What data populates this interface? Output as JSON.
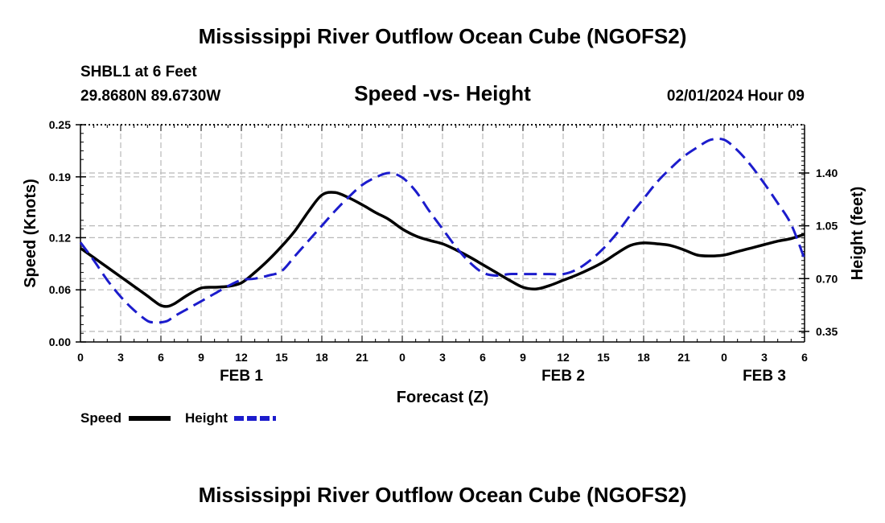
{
  "page": {
    "title": "Mississippi River Outflow Ocean Cube (NGOFS2)",
    "station": "SHBL1 at 6 Feet",
    "coords": "29.8680N  89.6730W",
    "chart_heading": "Speed -vs- Height",
    "datetime": "02/01/2024 Hour 09",
    "footer_title": "Mississippi River Outflow Ocean Cube (NGOFS2)"
  },
  "colors": {
    "speed": "#000000",
    "height": "#1c1ccc",
    "grid": "#b8b8b8"
  },
  "chart_data": {
    "type": "line",
    "title": "Speed -vs- Height",
    "xlabel": "Forecast (Z)",
    "ylabel": "Speed (Knots)",
    "y2label": "Height (feet)",
    "xlim": [
      0,
      54
    ],
    "ylim": [
      0,
      0.25
    ],
    "y2lim": [
      0.28,
      1.72
    ],
    "x_tick_values": [
      0,
      3,
      6,
      9,
      12,
      15,
      18,
      21,
      24,
      27,
      30,
      33,
      36,
      39,
      42,
      45,
      48,
      51,
      54
    ],
    "x_tick_labels": [
      "0",
      "3",
      "6",
      "9",
      "12",
      "15",
      "18",
      "21",
      "0",
      "3",
      "6",
      "9",
      "12",
      "15",
      "18",
      "21",
      "0",
      "3",
      "6"
    ],
    "y_ticks": [
      0.0,
      0.06,
      0.12,
      0.19,
      0.25
    ],
    "y_tick_labels": [
      "0.00",
      "0.06",
      "0.12",
      "0.19",
      "0.25"
    ],
    "y2_ticks": [
      0.35,
      0.7,
      1.05,
      1.4
    ],
    "y2_tick_labels": [
      "0.35",
      "0.70",
      "1.05",
      "1.40"
    ],
    "day_labels": [
      {
        "x": 12,
        "label": "FEB 1"
      },
      {
        "x": 36,
        "label": "FEB 2"
      },
      {
        "x": 51,
        "label": "FEB 3"
      }
    ],
    "legend": [
      "Speed",
      "Height"
    ],
    "series": [
      {
        "name": "Speed",
        "axis": "left",
        "style": "solid",
        "x": [
          0,
          1,
          2,
          3,
          4,
          5,
          5.5,
          6,
          6.5,
          7,
          8,
          9,
          10,
          11,
          12,
          13,
          14,
          15,
          16,
          17,
          18,
          19,
          20,
          21,
          22,
          23,
          24,
          25,
          26,
          27,
          28,
          29,
          30,
          31,
          32,
          33,
          34,
          35,
          36,
          37,
          38,
          39,
          40,
          41,
          42,
          43,
          44,
          45,
          46,
          47,
          48,
          49,
          50,
          51,
          52,
          53,
          54
        ],
        "values": [
          0.108,
          0.097,
          0.086,
          0.075,
          0.064,
          0.053,
          0.047,
          0.042,
          0.041,
          0.044,
          0.054,
          0.062,
          0.063,
          0.064,
          0.068,
          0.08,
          0.094,
          0.11,
          0.128,
          0.15,
          0.169,
          0.172,
          0.166,
          0.158,
          0.149,
          0.141,
          0.13,
          0.122,
          0.117,
          0.113,
          0.106,
          0.098,
          0.089,
          0.08,
          0.071,
          0.063,
          0.061,
          0.065,
          0.071,
          0.077,
          0.084,
          0.092,
          0.102,
          0.111,
          0.114,
          0.113,
          0.111,
          0.106,
          0.1,
          0.099,
          0.1,
          0.104,
          0.108,
          0.112,
          0.116,
          0.119,
          0.124
        ]
      },
      {
        "name": "Height",
        "axis": "right",
        "style": "dashed",
        "x": [
          0,
          1,
          2,
          3,
          4,
          5,
          5.5,
          6,
          6.5,
          7,
          8,
          9,
          10,
          11,
          12,
          13,
          14,
          15,
          16,
          17,
          18,
          19,
          20,
          21,
          22,
          23,
          24,
          25,
          26,
          27,
          28,
          29,
          30,
          31,
          32,
          33,
          34,
          35,
          36,
          37,
          38,
          39,
          40,
          41,
          42,
          43,
          44,
          45,
          46,
          47,
          48,
          49,
          50,
          51,
          52,
          53,
          54
        ],
        "values": [
          0.94,
          0.82,
          0.69,
          0.58,
          0.49,
          0.42,
          0.41,
          0.41,
          0.42,
          0.45,
          0.5,
          0.55,
          0.6,
          0.65,
          0.69,
          0.7,
          0.72,
          0.75,
          0.85,
          0.95,
          1.05,
          1.15,
          1.24,
          1.32,
          1.37,
          1.4,
          1.37,
          1.28,
          1.15,
          1.03,
          0.91,
          0.81,
          0.74,
          0.72,
          0.73,
          0.73,
          0.73,
          0.73,
          0.73,
          0.76,
          0.82,
          0.9,
          1.0,
          1.12,
          1.23,
          1.34,
          1.43,
          1.51,
          1.57,
          1.62,
          1.62,
          1.55,
          1.45,
          1.33,
          1.2,
          1.06,
          0.83
        ]
      }
    ]
  }
}
